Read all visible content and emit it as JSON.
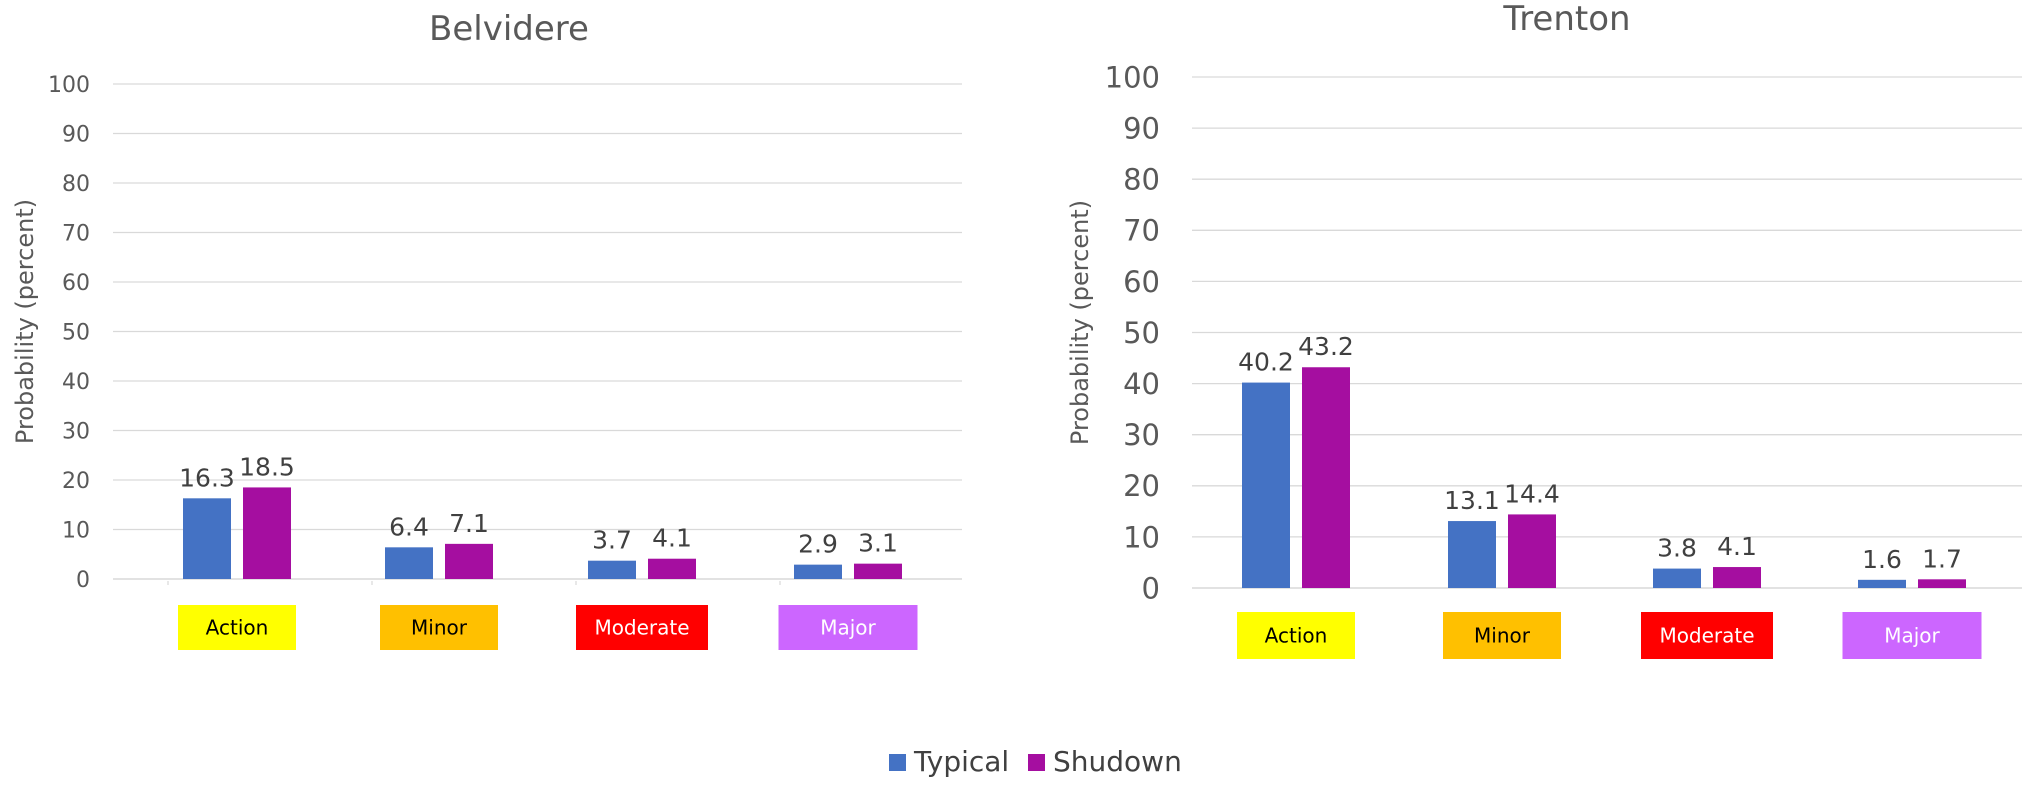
{
  "legend": [
    {
      "name": "Typical",
      "color": "#4472c4"
    },
    {
      "name": "Shudown",
      "color": "#a50ea0"
    }
  ],
  "chart_data": [
    {
      "type": "bar",
      "title": "Belvidere",
      "ylabel": "Probability (percent)",
      "ylim": [
        0,
        100
      ],
      "yticks": [
        "0",
        "10",
        "20",
        "30",
        "40",
        "50",
        "60",
        "70",
        "80",
        "90",
        "100"
      ],
      "categories": [
        "Action",
        "Minor",
        "Moderate",
        "Major"
      ],
      "category_colors": [
        "#ffff00",
        "#ffc000",
        "#ff0000",
        "#cc66ff"
      ],
      "category_text_colors": [
        "#000000",
        "#000000",
        "#ffffff",
        "#ffffff"
      ],
      "grid": true,
      "series": [
        {
          "name": "Typical",
          "values": [
            16.3,
            6.4,
            3.7,
            2.9
          ],
          "labels": [
            "16.3",
            "6.4",
            "3.7",
            "2.9"
          ]
        },
        {
          "name": "Shudown",
          "values": [
            18.5,
            7.1,
            4.1,
            3.1
          ],
          "labels": [
            "18.5",
            "7.1",
            "4.1",
            "3.1"
          ]
        }
      ]
    },
    {
      "type": "bar",
      "title": "Trenton",
      "ylabel": "Probability (percent)",
      "ylim": [
        0,
        100
      ],
      "yticks": [
        "0",
        "10",
        "20",
        "30",
        "40",
        "50",
        "60",
        "70",
        "80",
        "90",
        "100"
      ],
      "categories": [
        "Action",
        "Minor",
        "Moderate",
        "Major"
      ],
      "category_colors": [
        "#ffff00",
        "#ffc000",
        "#ff0000",
        "#cc66ff"
      ],
      "category_text_colors": [
        "#000000",
        "#000000",
        "#ffffff",
        "#ffffff"
      ],
      "grid": true,
      "series": [
        {
          "name": "Typical",
          "values": [
            40.2,
            13.1,
            3.8,
            1.6
          ],
          "labels": [
            "40.2",
            "13.1",
            "3.8",
            "1.6"
          ]
        },
        {
          "name": "Shudown",
          "values": [
            43.2,
            14.4,
            4.1,
            1.7
          ],
          "labels": [
            "43.2",
            "14.4",
            "4.1",
            "1.7"
          ]
        }
      ]
    }
  ]
}
